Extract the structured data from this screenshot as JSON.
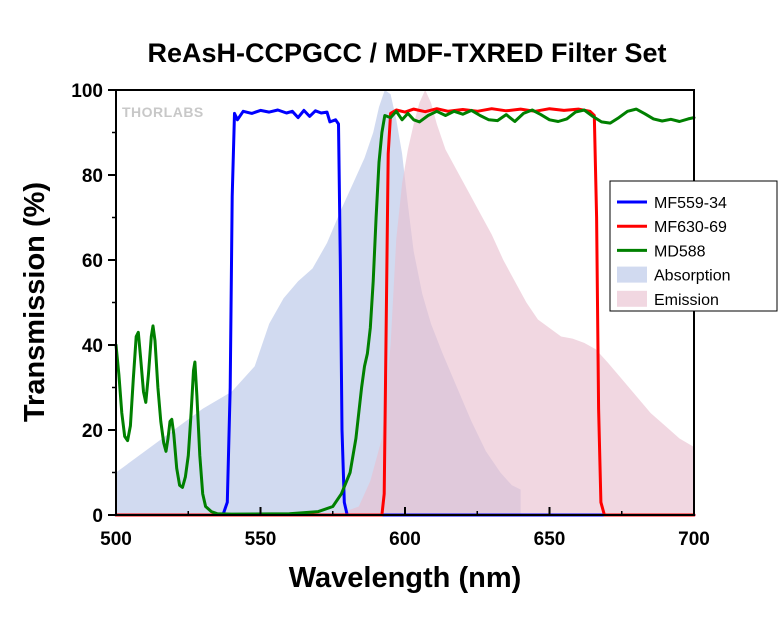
{
  "chart_data": {
    "type": "line",
    "title": "ReAsH-CCPGCC / MDF-TXRED Filter Set",
    "xlabel": "Wavelength (nm)",
    "ylabel": "Transmission (%)",
    "xlim": [
      500,
      700
    ],
    "ylim": [
      0,
      100
    ],
    "xticks": [
      500,
      550,
      600,
      650,
      700
    ],
    "yticks": [
      0,
      20,
      40,
      60,
      80,
      100
    ],
    "watermark": "THORLABS",
    "legend_position": "right",
    "series": [
      {
        "name": "MF559-34",
        "kind": "line",
        "color": "#0000ff",
        "points": [
          [
            500,
            0
          ],
          [
            537,
            0
          ],
          [
            538.5,
            3
          ],
          [
            539.5,
            30
          ],
          [
            540.2,
            75
          ],
          [
            541,
            94.5
          ],
          [
            542,
            93
          ],
          [
            544,
            95
          ],
          [
            547,
            94.5
          ],
          [
            550,
            95.2
          ],
          [
            553,
            94.8
          ],
          [
            556,
            95.3
          ],
          [
            559,
            94.6
          ],
          [
            561,
            95
          ],
          [
            563,
            93.5
          ],
          [
            565,
            95.2
          ],
          [
            567,
            93.8
          ],
          [
            569,
            95.1
          ],
          [
            571,
            94.6
          ],
          [
            573,
            94.8
          ],
          [
            574,
            92.5
          ],
          [
            576,
            93
          ],
          [
            577,
            92
          ],
          [
            577.6,
            60
          ],
          [
            578.2,
            20
          ],
          [
            579,
            3
          ],
          [
            580,
            0
          ],
          [
            700,
            0
          ]
        ]
      },
      {
        "name": "MF630-69",
        "kind": "line",
        "color": "#ff0000",
        "points": [
          [
            500,
            0
          ],
          [
            592,
            0
          ],
          [
            592.8,
            5
          ],
          [
            593.5,
            45
          ],
          [
            594.2,
            85
          ],
          [
            595,
            94.5
          ],
          [
            597,
            95.3
          ],
          [
            600,
            94.8
          ],
          [
            603,
            95.5
          ],
          [
            607,
            94.9
          ],
          [
            611,
            95.6
          ],
          [
            615,
            95
          ],
          [
            620,
            95.4
          ],
          [
            625,
            95
          ],
          [
            630,
            95.6
          ],
          [
            635,
            95.1
          ],
          [
            640,
            95.5
          ],
          [
            645,
            95
          ],
          [
            650,
            95.6
          ],
          [
            655,
            95.2
          ],
          [
            660,
            95.5
          ],
          [
            664,
            95
          ],
          [
            665.5,
            94
          ],
          [
            666.3,
            70
          ],
          [
            667,
            25
          ],
          [
            667.8,
            3
          ],
          [
            669,
            0
          ],
          [
            700,
            0
          ]
        ]
      },
      {
        "name": "MD588",
        "kind": "line",
        "color": "#008000",
        "points": [
          [
            500,
            40
          ],
          [
            501,
            33
          ],
          [
            502,
            24
          ],
          [
            503,
            18.5
          ],
          [
            504,
            17.5
          ],
          [
            505,
            21
          ],
          [
            506,
            32
          ],
          [
            507,
            42
          ],
          [
            507.7,
            43
          ],
          [
            508.5,
            37
          ],
          [
            509.5,
            29
          ],
          [
            510.3,
            26.5
          ],
          [
            511.2,
            33
          ],
          [
            512.2,
            42
          ],
          [
            512.8,
            44.5
          ],
          [
            513.5,
            41
          ],
          [
            514.5,
            30
          ],
          [
            515.5,
            22
          ],
          [
            516.5,
            17
          ],
          [
            517.3,
            15
          ],
          [
            518,
            18
          ],
          [
            518.7,
            22
          ],
          [
            519.3,
            22.5
          ],
          [
            520,
            19
          ],
          [
            521,
            11
          ],
          [
            522,
            7
          ],
          [
            523,
            6.5
          ],
          [
            524,
            9
          ],
          [
            525,
            14
          ],
          [
            526,
            24
          ],
          [
            526.8,
            34
          ],
          [
            527.3,
            36
          ],
          [
            528,
            28
          ],
          [
            529,
            14
          ],
          [
            530,
            5
          ],
          [
            531,
            2
          ],
          [
            533,
            0.8
          ],
          [
            535,
            0.3
          ],
          [
            540,
            0.2
          ],
          [
            560,
            0.3
          ],
          [
            570,
            0.8
          ],
          [
            575,
            2
          ],
          [
            578,
            5
          ],
          [
            581,
            10
          ],
          [
            583,
            18
          ],
          [
            585,
            30
          ],
          [
            586,
            35
          ],
          [
            587,
            38
          ],
          [
            588,
            44
          ],
          [
            589,
            55
          ],
          [
            590,
            70
          ],
          [
            591,
            83
          ],
          [
            592,
            90
          ],
          [
            593,
            94
          ],
          [
            595,
            93.5
          ],
          [
            597,
            95
          ],
          [
            599,
            93
          ],
          [
            601,
            94.5
          ],
          [
            603,
            93
          ],
          [
            605,
            92.5
          ],
          [
            608,
            94
          ],
          [
            611,
            95
          ],
          [
            614,
            94
          ],
          [
            617,
            95
          ],
          [
            620,
            94.3
          ],
          [
            623,
            95.2
          ],
          [
            626,
            94
          ],
          [
            629,
            93
          ],
          [
            632,
            92.8
          ],
          [
            635,
            94.2
          ],
          [
            638,
            92.6
          ],
          [
            641,
            94.5
          ],
          [
            644,
            95.3
          ],
          [
            647,
            94.2
          ],
          [
            650,
            93
          ],
          [
            653,
            92.6
          ],
          [
            656,
            93.2
          ],
          [
            659,
            94.8
          ],
          [
            662,
            95.3
          ],
          [
            665,
            93.8
          ],
          [
            668,
            92.5
          ],
          [
            671,
            92.2
          ],
          [
            674,
            93.5
          ],
          [
            677,
            95
          ],
          [
            680,
            95.5
          ],
          [
            683,
            94.4
          ],
          [
            686,
            93.2
          ],
          [
            689,
            92.7
          ],
          [
            692,
            93.1
          ],
          [
            695,
            92.6
          ],
          [
            698,
            93.2
          ],
          [
            700,
            93.5
          ]
        ]
      },
      {
        "name": "Absorption",
        "kind": "area",
        "color": "#b4c3e6",
        "points": [
          [
            500,
            10
          ],
          [
            510,
            15
          ],
          [
            520,
            20
          ],
          [
            530,
            25
          ],
          [
            540,
            29
          ],
          [
            548,
            35
          ],
          [
            553,
            45
          ],
          [
            558,
            51
          ],
          [
            563,
            55
          ],
          [
            568,
            58
          ],
          [
            573,
            64
          ],
          [
            578,
            72
          ],
          [
            582,
            78
          ],
          [
            586,
            84
          ],
          [
            589,
            90
          ],
          [
            591,
            96
          ],
          [
            593,
            100
          ],
          [
            595,
            99
          ],
          [
            597,
            93
          ],
          [
            599,
            85
          ],
          [
            601,
            73
          ],
          [
            603,
            62
          ],
          [
            606,
            52
          ],
          [
            609,
            45
          ],
          [
            613,
            38
          ],
          [
            618,
            30
          ],
          [
            623,
            22
          ],
          [
            628,
            15
          ],
          [
            633,
            10
          ],
          [
            637,
            7
          ],
          [
            640,
            6
          ],
          [
            640,
            0
          ],
          [
            500,
            0
          ]
        ]
      },
      {
        "name": "Emission",
        "kind": "area",
        "color": "#e8bfce",
        "points": [
          [
            577,
            0
          ],
          [
            580,
            1
          ],
          [
            584,
            2
          ],
          [
            588,
            8
          ],
          [
            592,
            18
          ],
          [
            595,
            40
          ],
          [
            597,
            65
          ],
          [
            599,
            78
          ],
          [
            601,
            86
          ],
          [
            603,
            92
          ],
          [
            605,
            97
          ],
          [
            607,
            100
          ],
          [
            609,
            97
          ],
          [
            611,
            92
          ],
          [
            614,
            86
          ],
          [
            618,
            81
          ],
          [
            622,
            76
          ],
          [
            626,
            71
          ],
          [
            630,
            66
          ],
          [
            634,
            60
          ],
          [
            638,
            55
          ],
          [
            642,
            50
          ],
          [
            646,
            46
          ],
          [
            650,
            44
          ],
          [
            654,
            42
          ],
          [
            658,
            41.5
          ],
          [
            662,
            40.5
          ],
          [
            666,
            39
          ],
          [
            670,
            36
          ],
          [
            675,
            32
          ],
          [
            680,
            28
          ],
          [
            685,
            24
          ],
          [
            690,
            21
          ],
          [
            695,
            18
          ],
          [
            700,
            16
          ],
          [
            700,
            0
          ]
        ]
      }
    ]
  }
}
